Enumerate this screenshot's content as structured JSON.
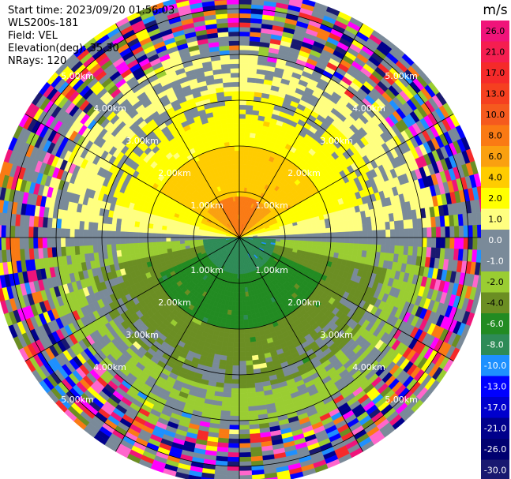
{
  "header": {
    "start_time": "Start time: 2023/09/20 01:56:03",
    "instrument": "WLS200s-181",
    "field": "Field: VEL",
    "elevation": "Elevation(deg): 35.30",
    "nrays": "NRays: 120"
  },
  "colorbar": {
    "unit": "m/s",
    "ticks": [
      "26.0",
      "21.0",
      "17.0",
      "13.0",
      "10.0",
      "8.0",
      "6.0",
      "4.0",
      "2.0",
      "1.0",
      "0.0",
      "-1.0",
      "-2.0",
      "-4.0",
      "-6.0",
      "-8.0",
      "-10.0",
      "-13.0",
      "-17.0",
      "-21.0",
      "-26.0",
      "-30.0"
    ],
    "colors": [
      "#f0147a",
      "#f51e50",
      "#f52a2a",
      "#f54020",
      "#f55a1e",
      "#fa7a14",
      "#faa010",
      "#ffcc00",
      "#ffff00",
      "#ffff80",
      "#7a8a99",
      "#7a8a99",
      "#9acd32",
      "#6b8e23",
      "#228b22",
      "#2e8b57",
      "#1e90ff",
      "#0000ff",
      "#0000cd",
      "#00008b",
      "#000070",
      "#191970"
    ]
  },
  "chart_data": {
    "type": "heatmap",
    "projection": "polar (PPI)",
    "field": "VEL",
    "units": "m/s",
    "elevation_deg": 35.3,
    "nrays": 120,
    "range_rings_km": [
      1.0,
      2.0,
      3.0,
      4.0,
      5.0
    ],
    "ring_labels": [
      "1.00km",
      "2.00km",
      "3.00km",
      "4.00km",
      "5.00km"
    ],
    "spokes_deg": [
      0,
      30,
      60,
      90,
      120,
      150,
      180,
      210,
      240,
      270,
      300,
      330
    ],
    "max_range_km": 5.4,
    "pattern": {
      "north_half": {
        "core_value": 4.0,
        "near_value": 2.0,
        "outer_value": 1.0
      },
      "south_half": {
        "core_value": -8.0,
        "near_value": -6.0,
        "outer_value": -4.0
      },
      "edge_value": 0.0,
      "noise_beyond_km": 4.2
    }
  }
}
